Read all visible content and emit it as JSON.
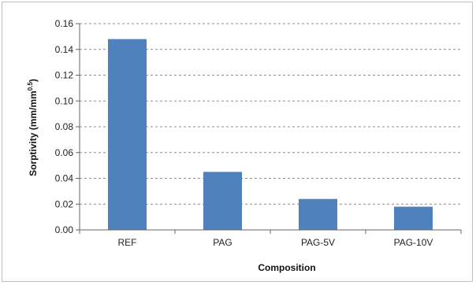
{
  "chart_data": {
    "type": "bar",
    "title": "",
    "xlabel": "Composition",
    "ylabel_main": "Sorptivity (mm/mm",
    "ylabel_sup": "0.5",
    "ylabel_end": ")",
    "categories": [
      "REF",
      "PAG",
      "PAG-5V",
      "PAG-10V"
    ],
    "values": [
      0.148,
      0.045,
      0.024,
      0.018
    ],
    "ylim": [
      0,
      0.16
    ],
    "yticks": [
      "0.00",
      "0.02",
      "0.04",
      "0.06",
      "0.08",
      "0.10",
      "0.12",
      "0.14",
      "0.16"
    ],
    "grid": true,
    "legend": "none",
    "bar_color": "#4f81bd"
  }
}
